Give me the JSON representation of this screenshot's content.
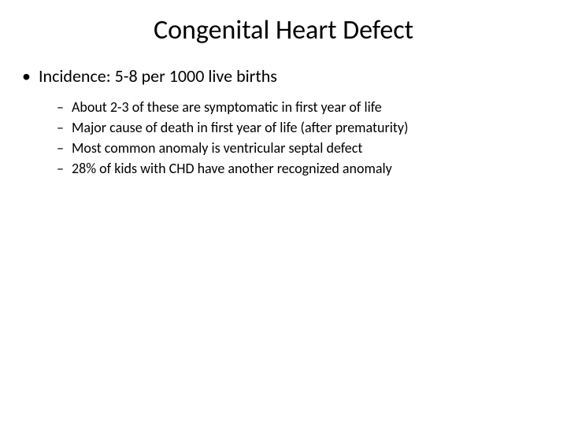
{
  "slide": {
    "title": "Congenital Heart Defect",
    "title_fontsize": 34,
    "background_color": "#ffffff",
    "text_color": "#000000",
    "bullets": [
      {
        "marker": "•",
        "text": "Incidence: 5-8 per 1000 live births",
        "fontsize": 22,
        "sub": [
          {
            "marker": "–",
            "text": "About 2-3 of these are symptomatic in first year of life"
          },
          {
            "marker": "–",
            "text": "Major cause of death in first year of life (after prematurity)"
          },
          {
            "marker": "–",
            "text": "Most common anomaly is ventricular septal defect"
          },
          {
            "marker": "–",
            "text": "28% of kids with CHD have another recognized anomaly"
          }
        ],
        "sub_fontsize": 18
      }
    ]
  }
}
